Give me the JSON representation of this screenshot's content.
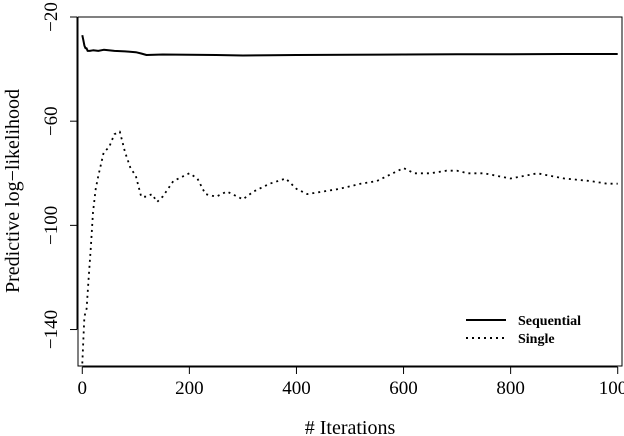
{
  "chart_data": {
    "type": "line",
    "title": "",
    "xlabel": "# Iterations",
    "ylabel": "Predictive log−likelihood",
    "xlim": [
      -8,
      1008
    ],
    "ylim": [
      -154,
      -20
    ],
    "xticks": [
      0,
      200,
      400,
      600,
      800,
      1000
    ],
    "xtick_labels": [
      "0",
      "200",
      "400",
      "600",
      "800",
      "1000"
    ],
    "yticks": [
      -140,
      -100,
      -60,
      -20
    ],
    "ytick_labels": [
      "−140",
      "−100",
      "−60",
      "−20"
    ],
    "grid": false,
    "legend": {
      "position": "bottom-right"
    },
    "series": [
      {
        "name": "Sequential",
        "style": "solid",
        "color": "#000000",
        "x": [
          0,
          2,
          4,
          6,
          8,
          10,
          14,
          20,
          30,
          40,
          60,
          80,
          100,
          110,
          120,
          150,
          200,
          250,
          300,
          350,
          400,
          500,
          600,
          700,
          800,
          900,
          1000
        ],
        "y": [
          -27,
          -29,
          -31,
          -32,
          -32,
          -33,
          -33,
          -32.8,
          -33,
          -32.6,
          -33,
          -33.2,
          -33.5,
          -34,
          -34.6,
          -34.4,
          -34.5,
          -34.6,
          -34.8,
          -34.7,
          -34.6,
          -34.5,
          -34.4,
          -34.3,
          -34.3,
          -34.2,
          -34.2
        ]
      },
      {
        "name": "Single",
        "style": "dotted",
        "color": "#000000",
        "x": [
          0,
          4,
          8,
          12,
          16,
          20,
          25,
          30,
          40,
          50,
          60,
          70,
          80,
          90,
          100,
          110,
          120,
          130,
          140,
          150,
          160,
          170,
          180,
          190,
          200,
          215,
          230,
          250,
          270,
          300,
          320,
          350,
          380,
          400,
          420,
          450,
          480,
          520,
          550,
          580,
          600,
          620,
          650,
          680,
          700,
          720,
          750,
          800,
          850,
          900,
          950,
          980,
          1000
        ],
        "y": [
          -153,
          -135,
          -132,
          -120,
          -108,
          -95,
          -86,
          -81,
          -72,
          -70,
          -65,
          -64,
          -72,
          -78,
          -81,
          -89,
          -89,
          -88,
          -91,
          -89,
          -86,
          -83,
          -82,
          -81,
          -80,
          -82,
          -88,
          -89,
          -87,
          -90,
          -87,
          -84,
          -82,
          -86,
          -88,
          -87,
          -86,
          -84,
          -83,
          -80,
          -78,
          -80,
          -80,
          -79,
          -79,
          -80,
          -80,
          -82,
          -80,
          -82,
          -83,
          -84,
          -84
        ]
      }
    ]
  }
}
